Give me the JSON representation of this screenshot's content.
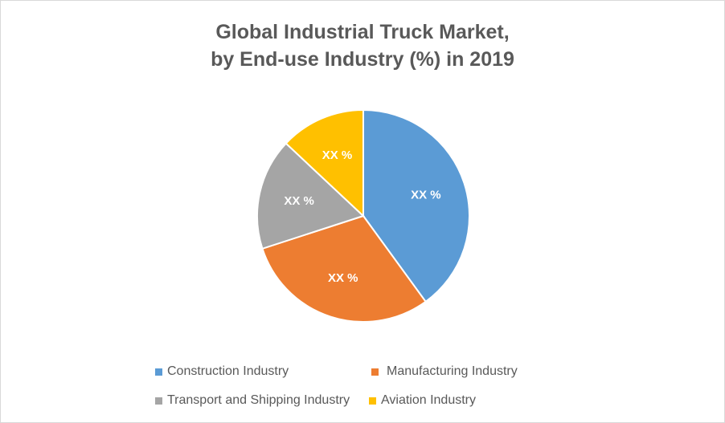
{
  "chart_data": {
    "type": "pie",
    "title_line1": "Global Industrial Truck Market,",
    "title_line2": "by End-use Industry (%) in 2019",
    "slices": [
      {
        "name": "Construction Industry",
        "value": 40,
        "color": "#5b9bd5",
        "label": "XX %"
      },
      {
        "name": "Manufacturing Industry",
        "value": 30,
        "color": "#ed7d31",
        "label": "XX %"
      },
      {
        "name": "Transport and Shipping Industry",
        "value": 17,
        "color": "#a5a5a5",
        "label": "XX %"
      },
      {
        "name": "Aviation Industry",
        "value": 13,
        "color": "#ffc000",
        "label": "XX %"
      }
    ],
    "legend_position": "bottom"
  }
}
